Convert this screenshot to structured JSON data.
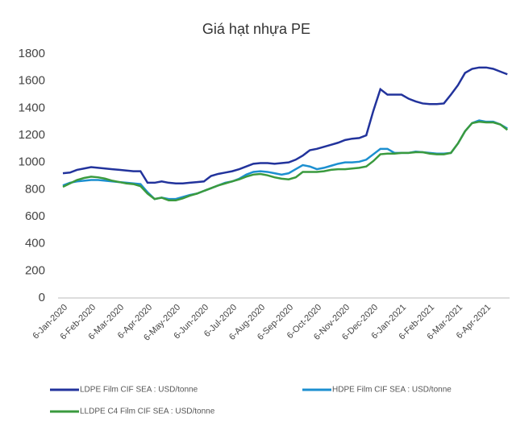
{
  "chart_data": {
    "type": "line",
    "title": "Giá hạt nhựa PE",
    "categories": [
      "6-Jan-2020",
      null,
      null,
      null,
      "6-Feb-2020",
      null,
      null,
      null,
      "6-Mar-2020",
      null,
      null,
      null,
      "6-Apr-2020",
      null,
      null,
      null,
      "6-May-2020",
      null,
      null,
      null,
      "6-Jun-2020",
      null,
      null,
      null,
      "6-Jul-2020",
      null,
      null,
      null,
      "6-Aug-2020",
      null,
      null,
      null,
      "6-Sep-2020",
      null,
      null,
      null,
      "6-Oct-2020",
      null,
      null,
      null,
      "6-Nov-2020",
      null,
      null,
      null,
      "6-Dec-2020",
      null,
      null,
      null,
      "6-Jan-2021",
      null,
      null,
      null,
      "6-Feb-2021",
      null,
      null,
      null,
      "6-Mar-2021",
      null,
      null,
      null,
      "6-Apr-2021",
      null,
      null,
      null
    ],
    "series": [
      {
        "name": "LDPE Film CIF SEA : USD/tonne",
        "color": "#22339c",
        "values": [
          920,
          925,
          945,
          955,
          965,
          960,
          955,
          950,
          945,
          940,
          935,
          935,
          850,
          850,
          860,
          850,
          845,
          845,
          850,
          855,
          860,
          900,
          915,
          925,
          935,
          950,
          970,
          990,
          995,
          995,
          990,
          995,
          1000,
          1020,
          1050,
          1090,
          1100,
          1115,
          1130,
          1145,
          1165,
          1175,
          1180,
          1200,
          1380,
          1540,
          1500,
          1500,
          1500,
          1470,
          1450,
          1435,
          1430,
          1430,
          1435,
          1500,
          1570,
          1660,
          1690,
          1700,
          1700,
          1690,
          1670,
          1650
        ]
      },
      {
        "name": "HDPE Film CIF SEA : USD/tonne",
        "color": "#1c8fd0",
        "values": [
          830,
          850,
          860,
          865,
          870,
          870,
          865,
          860,
          855,
          850,
          845,
          840,
          780,
          730,
          740,
          730,
          730,
          745,
          760,
          770,
          790,
          810,
          830,
          850,
          860,
          880,
          910,
          930,
          935,
          930,
          920,
          910,
          920,
          950,
          980,
          970,
          950,
          960,
          975,
          990,
          1000,
          1000,
          1005,
          1020,
          1060,
          1100,
          1100,
          1070,
          1070,
          1070,
          1080,
          1075,
          1070,
          1065,
          1065,
          1070,
          1140,
          1230,
          1290,
          1310,
          1300,
          1300,
          1280,
          1250
        ]
      },
      {
        "name": "LLDPE C4 Film CIF SEA : USD/tonne",
        "color": "#3a9a3e",
        "values": [
          820,
          845,
          870,
          885,
          895,
          890,
          880,
          865,
          855,
          845,
          840,
          825,
          770,
          730,
          740,
          720,
          720,
          735,
          755,
          770,
          790,
          810,
          830,
          845,
          860,
          875,
          895,
          910,
          915,
          905,
          890,
          880,
          875,
          890,
          930,
          930,
          930,
          935,
          945,
          950,
          950,
          955,
          960,
          970,
          1010,
          1060,
          1065,
          1065,
          1070,
          1070,
          1075,
          1075,
          1065,
          1060,
          1060,
          1070,
          1140,
          1230,
          1290,
          1300,
          1295,
          1295,
          1280,
          1240
        ]
      }
    ],
    "ylim": [
      0,
      1800
    ],
    "yticks": [
      0,
      200,
      400,
      600,
      800,
      1000,
      1200,
      1400,
      1600,
      1800
    ],
    "grid": false
  }
}
